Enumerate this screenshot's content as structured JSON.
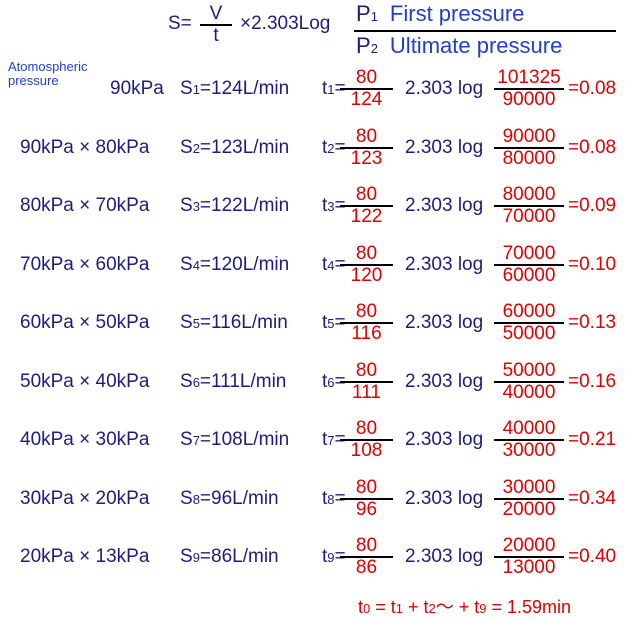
{
  "header": {
    "s_label": "S=",
    "v": "V",
    "t": "t",
    "factor": "×2.303Log",
    "p1": "P",
    "p1_sub": "1",
    "first": "First pressure",
    "p2": "P",
    "p2_sub": "2",
    "ultimate": "Ultimate pressure"
  },
  "note": [
    "Atomospheric",
    "pressure"
  ],
  "rows": [
    {
      "range": "90kPa",
      "s": "S",
      "s_sub": "1",
      "s_val": "=124L/min",
      "t": "t",
      "t_sub": "1",
      "eq": "=",
      "t_num": "80",
      "t_den": "124",
      "log": "2.303 log",
      "p_num": "101325",
      "p_den": "90000",
      "result": "=0.08"
    },
    {
      "range": "90kPa × 80kPa",
      "s": "S",
      "s_sub": "2",
      "s_val": "=123L/min",
      "t": "t",
      "t_sub": "2",
      "eq": "=",
      "t_num": "80",
      "t_den": "123",
      "log": "2.303 log",
      "p_num": "90000",
      "p_den": "80000",
      "result": "=0.08"
    },
    {
      "range": "80kPa × 70kPa",
      "s": "S",
      "s_sub": "3",
      "s_val": "=122L/min",
      "t": "t",
      "t_sub": "3",
      "eq": "=",
      "t_num": "80",
      "t_den": "122",
      "log": "2.303 log",
      "p_num": "80000",
      "p_den": "70000",
      "result": "=0.09"
    },
    {
      "range": "70kPa × 60kPa",
      "s": "S",
      "s_sub": "4",
      "s_val": "=120L/min",
      "t": "t",
      "t_sub": "4",
      "eq": "=",
      "t_num": "80",
      "t_den": "120",
      "log": "2.303 log",
      "p_num": "70000",
      "p_den": "60000",
      "result": "=0.10"
    },
    {
      "range": "60kPa × 50kPa",
      "s": "S",
      "s_sub": "5",
      "s_val": "=116L/min",
      "t": "t",
      "t_sub": "5",
      "eq": "=",
      "t_num": "80",
      "t_den": "116",
      "log": "2.303 log",
      "p_num": "60000",
      "p_den": "50000",
      "result": "=0.13"
    },
    {
      "range": "50kPa × 40kPa",
      "s": "S",
      "s_sub": "6",
      "s_val": "=111L/min",
      "t": "t",
      "t_sub": "6",
      "eq": "=",
      "t_num": "80",
      "t_den": "111",
      "log": "2.303 log",
      "p_num": "50000",
      "p_den": "40000",
      "result": "=0.16"
    },
    {
      "range": "40kPa × 30kPa",
      "s": "S",
      "s_sub": "7",
      "s_val": "=108L/min",
      "t": "t",
      "t_sub": "7",
      "eq": "=",
      "t_num": "80",
      "t_den": "108",
      "log": "2.303 log",
      "p_num": "40000",
      "p_den": "30000",
      "result": "=0.21"
    },
    {
      "range": "30kPa × 20kPa",
      "s": "S",
      "s_sub": "8",
      "s_val": "=96L/min",
      "t": "t",
      "t_sub": "8",
      "eq": "=",
      "t_num": "80",
      "t_den": "96",
      "log": "2.303 log",
      "p_num": "30000",
      "p_den": "20000",
      "result": "=0.34"
    },
    {
      "range": "20kPa × 13kPa",
      "s": "S",
      "s_sub": "9",
      "s_val": "=86L/min",
      "t": "t",
      "t_sub": "9",
      "eq": "=",
      "t_num": "80",
      "t_den": "86",
      "log": "2.303 log",
      "p_num": "20000",
      "p_den": "13000",
      "result": "=0.40"
    }
  ],
  "footer": [
    {
      "text": "t"
    },
    {
      "sub": "0"
    },
    {
      "text": " = t"
    },
    {
      "sub": "1"
    },
    {
      "text": " + t"
    },
    {
      "sub": "2"
    },
    {
      "text": "～ + t"
    },
    {
      "sub": "9"
    },
    {
      "text": " = 1.59min"
    }
  ]
}
